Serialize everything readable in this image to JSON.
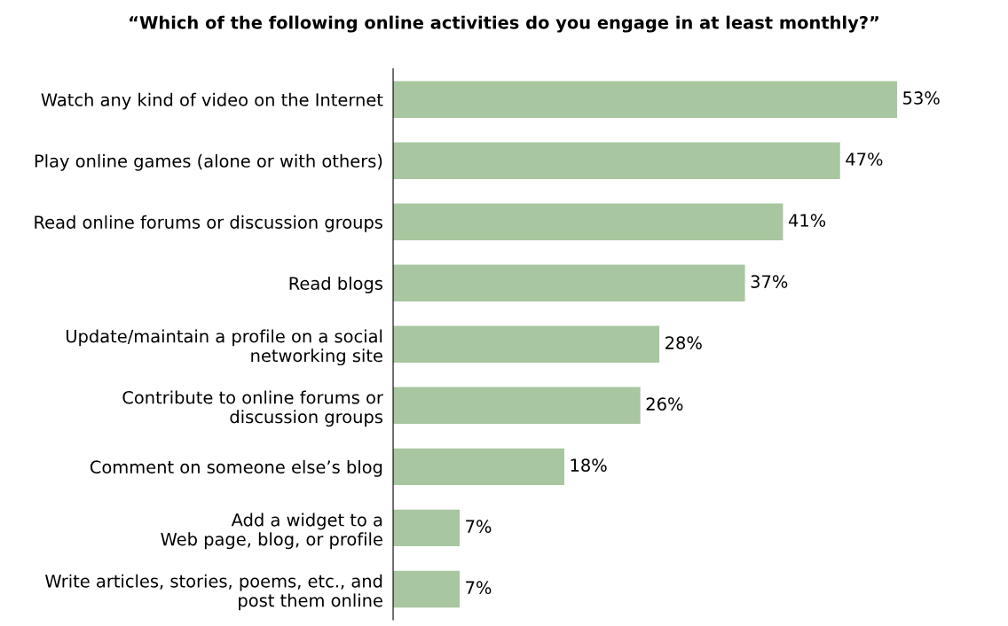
{
  "chart_data": {
    "type": "bar",
    "orientation": "horizontal",
    "title": "“Which of the following online activities do you engage in at least monthly?”",
    "categories": [
      "Watch any kind of video on the Internet",
      "Play online games (alone or with others)",
      "Read online forums or discussion groups",
      "Read blogs",
      "Update/maintain a profile on a social\nnetworking site",
      "Contribute to online forums or\ndiscussion groups",
      "Comment on someone else’s blog",
      "Add a widget to a\nWeb page, blog, or profile",
      "Write articles, stories, poems, etc., and\npost them online"
    ],
    "values": [
      53,
      47,
      41,
      37,
      28,
      26,
      18,
      7,
      7
    ],
    "value_labels": [
      "53%",
      "47%",
      "41%",
      "37%",
      "28%",
      "26%",
      "18%",
      "7%",
      "7%"
    ],
    "color": "#a8c69f",
    "grid": false,
    "tick_labels": "y"
  }
}
